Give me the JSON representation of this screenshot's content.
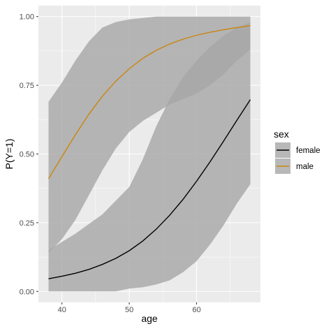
{
  "chart_data": {
    "type": "line",
    "xlabel": "age",
    "ylabel": "P(Y=1)",
    "xlim": [
      36.5,
      69.5
    ],
    "ylim": [
      -0.04,
      1.04
    ],
    "xticks": [
      40,
      50,
      60
    ],
    "yticks": [
      0.0,
      0.25,
      0.5,
      0.75,
      1.0
    ],
    "xtick_labels": [
      "40",
      "50",
      "60"
    ],
    "ytick_labels": [
      "0.00",
      "0.25",
      "0.50",
      "0.75",
      "1.00"
    ],
    "grid": true,
    "background": "#ebebeb",
    "legend": {
      "title": "sex",
      "position": "right"
    },
    "series": [
      {
        "name": "female",
        "color": "#000000",
        "ribbon_color": "#a6a6a6",
        "x": [
          38,
          40,
          42,
          44,
          46,
          48,
          50,
          52,
          54,
          56,
          58,
          60,
          62,
          64,
          66,
          68
        ],
        "y": [
          0.046,
          0.055,
          0.066,
          0.08,
          0.098,
          0.12,
          0.148,
          0.183,
          0.226,
          0.277,
          0.335,
          0.401,
          0.471,
          0.546,
          0.623,
          0.698
        ],
        "ymin": [
          0.0,
          0.0,
          0.0,
          0.0,
          0.0,
          0.0,
          0.01,
          0.015,
          0.025,
          0.04,
          0.07,
          0.11,
          0.17,
          0.24,
          0.32,
          0.39
        ],
        "ymax": [
          0.15,
          0.18,
          0.21,
          0.245,
          0.28,
          0.33,
          0.38,
          0.48,
          0.6,
          0.7,
          0.78,
          0.84,
          0.89,
          0.93,
          0.96,
          0.98
        ]
      },
      {
        "name": "male",
        "color": "#c9860f",
        "ribbon_color": "#a6a6a6",
        "x": [
          38,
          40,
          42,
          44,
          46,
          48,
          50,
          52,
          54,
          56,
          58,
          60,
          62,
          64,
          66,
          68
        ],
        "y": [
          0.41,
          0.49,
          0.57,
          0.645,
          0.71,
          0.765,
          0.81,
          0.848,
          0.877,
          0.9,
          0.918,
          0.932,
          0.943,
          0.952,
          0.96,
          0.967
        ],
        "ymin": [
          0.14,
          0.19,
          0.26,
          0.35,
          0.44,
          0.52,
          0.58,
          0.62,
          0.65,
          0.68,
          0.7,
          0.72,
          0.75,
          0.79,
          0.84,
          0.88
        ],
        "ymax": [
          0.69,
          0.76,
          0.84,
          0.91,
          0.96,
          0.98,
          0.99,
          0.995,
          1.0,
          1.0,
          1.0,
          1.0,
          1.0,
          1.0,
          1.0,
          1.0
        ]
      }
    ]
  }
}
